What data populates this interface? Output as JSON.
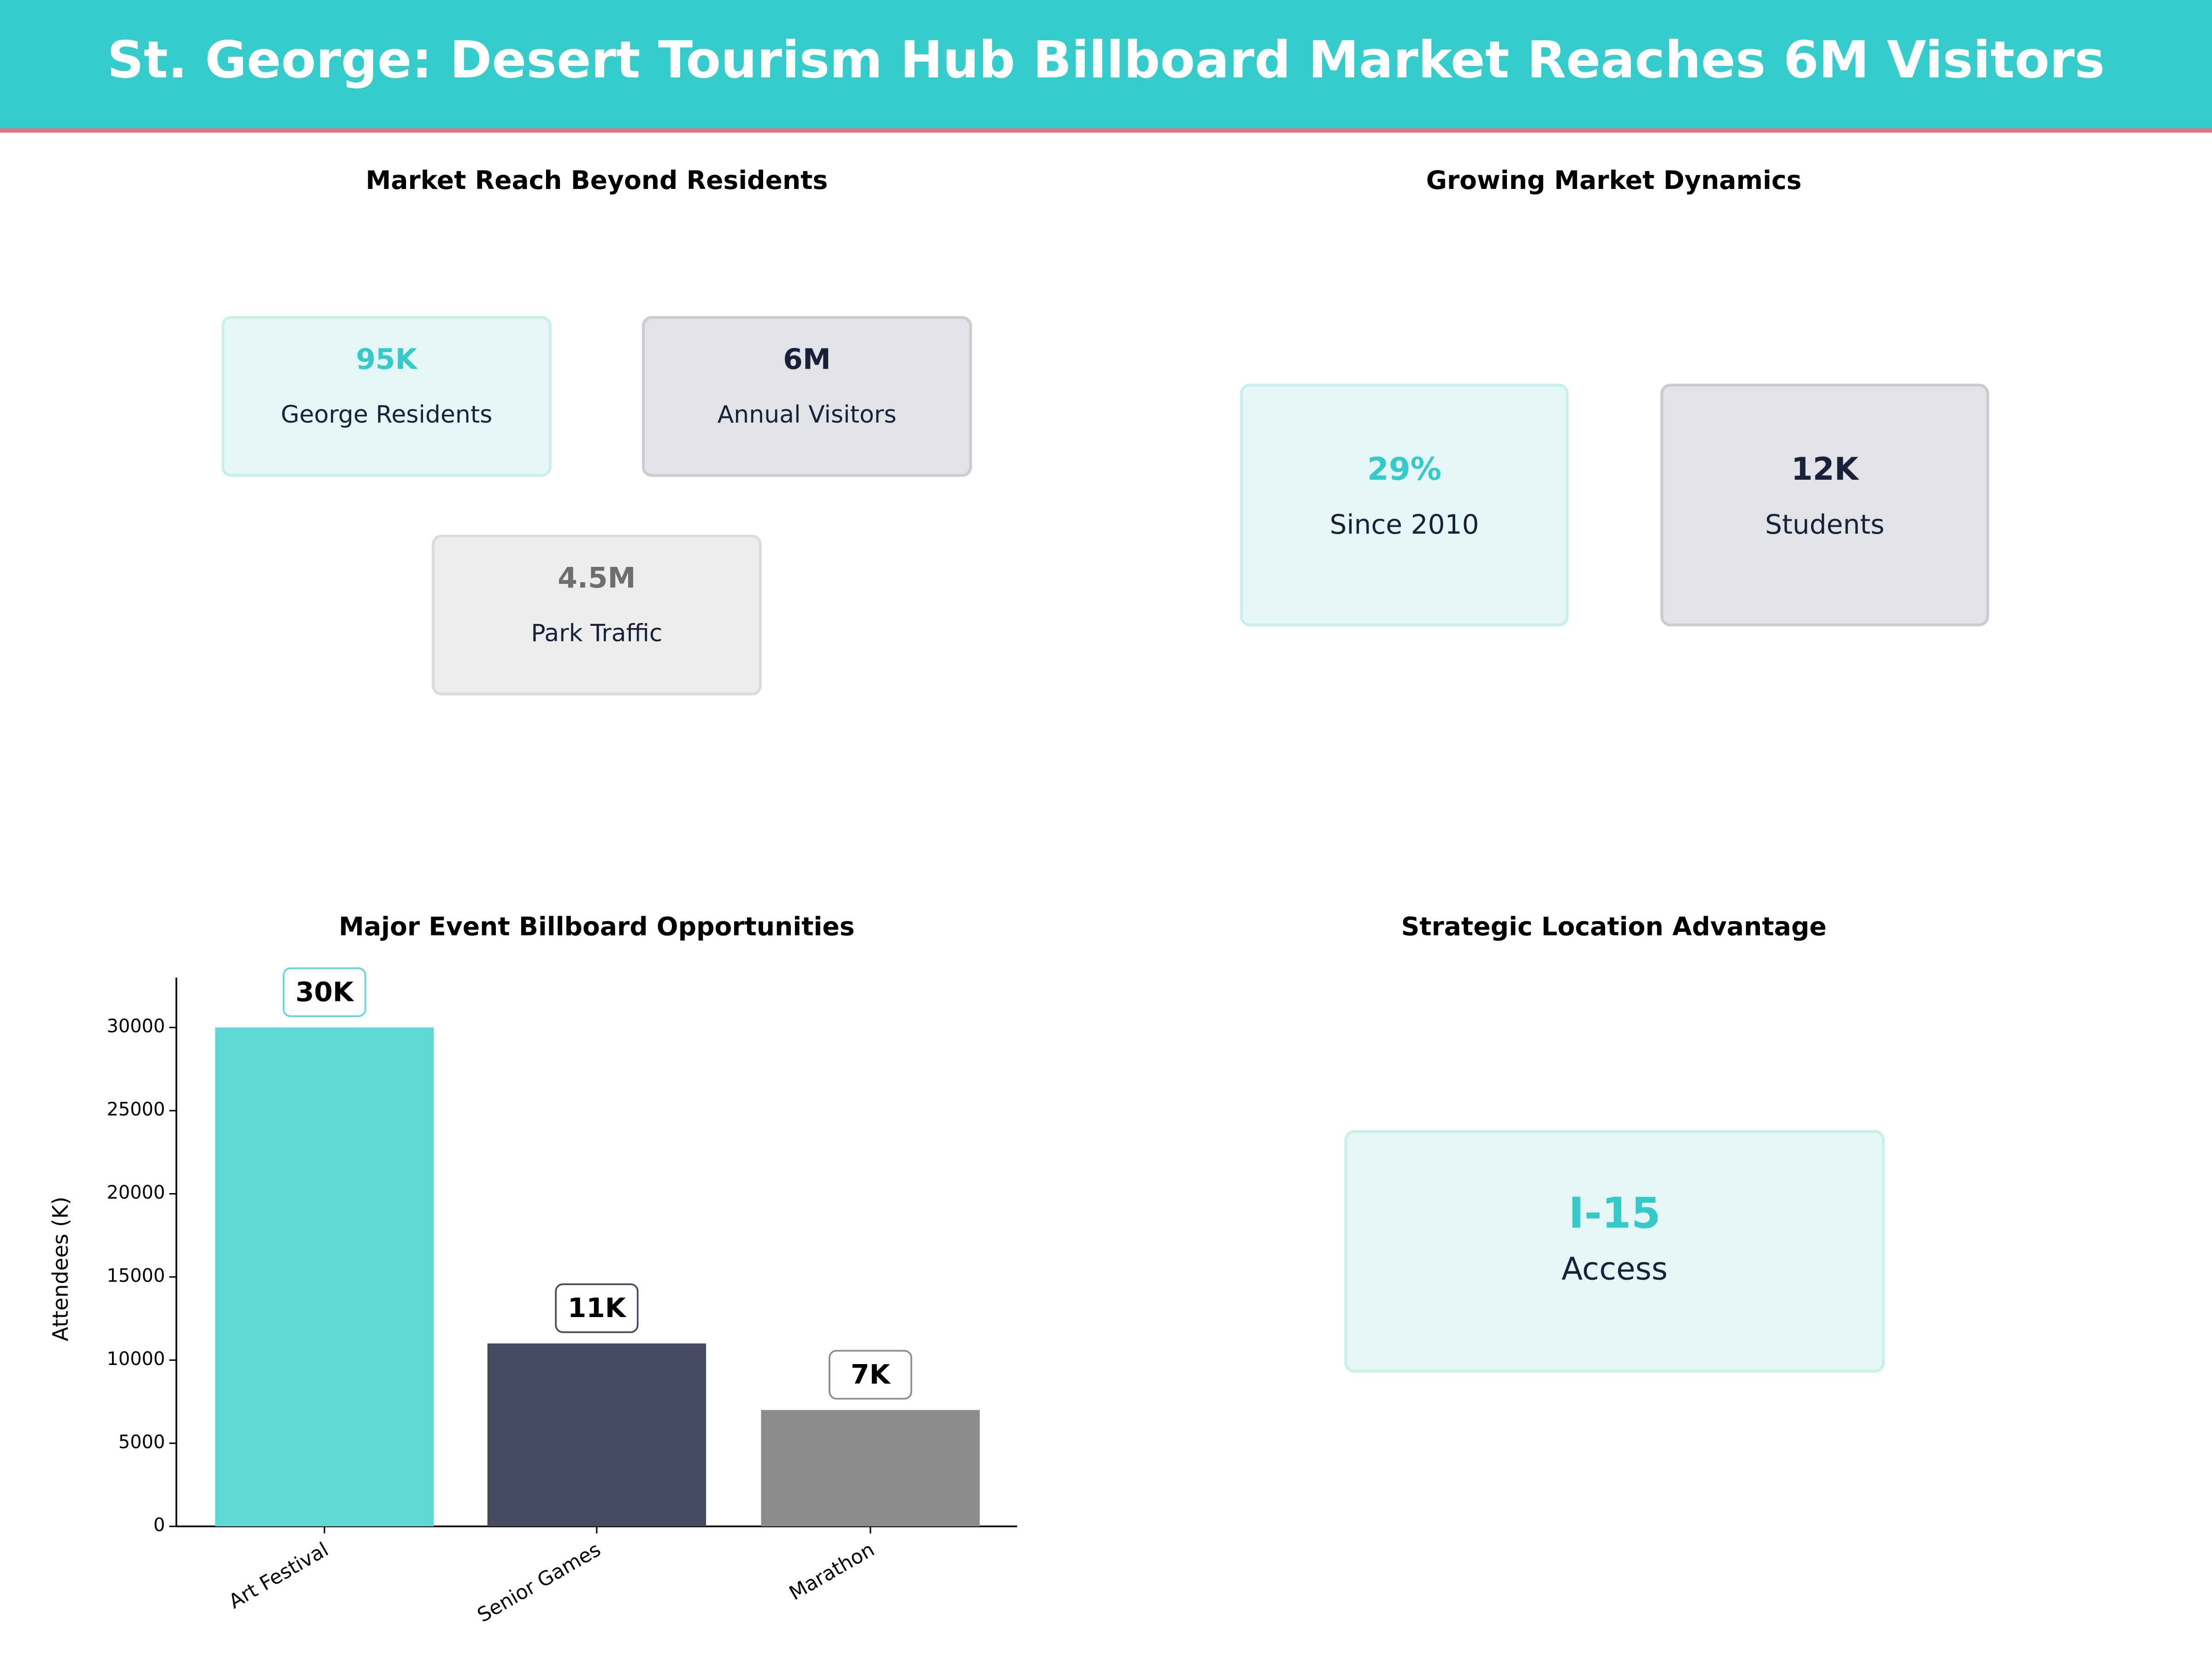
{
  "header": {
    "title": "St. George: Desert Tourism Hub Billboard Market Reaches 6M Visitors"
  },
  "market_reach": {
    "title": "Market Reach Beyond Residents",
    "cards": [
      {
        "value": "95K",
        "label": "George Residents",
        "style": "cyan"
      },
      {
        "value": "6M",
        "label": "Annual Visitors",
        "style": "dark"
      },
      {
        "value": "4.5M",
        "label": "Park Traffic",
        "style": "gray"
      }
    ]
  },
  "dynamics": {
    "title": "Growing Market Dynamics",
    "cards": [
      {
        "value": "29%",
        "label": "Since 2010",
        "style": "cyan"
      },
      {
        "value": "12K",
        "label": "Students",
        "style": "dark"
      }
    ]
  },
  "location": {
    "title": "Strategic Location Advantage",
    "cards": [
      {
        "value": "I-15",
        "label": "Access",
        "style": "cyan"
      }
    ]
  },
  "chart_data": {
    "type": "bar",
    "title": "Major Event Billboard Opportunities",
    "y_label": "Attendees (K)",
    "categories": [
      "Art Festival",
      "Senior Games",
      "Marathon"
    ],
    "values": [
      30000,
      11000,
      7000
    ],
    "value_labels": [
      "30K",
      "11K",
      "7K"
    ],
    "colors": [
      "#5dd8d5",
      "#454a60",
      "#8c8c8c"
    ],
    "ylim": [
      0,
      33000
    ],
    "yticks": [
      0,
      5000,
      10000,
      15000,
      20000,
      25000,
      30000
    ]
  }
}
